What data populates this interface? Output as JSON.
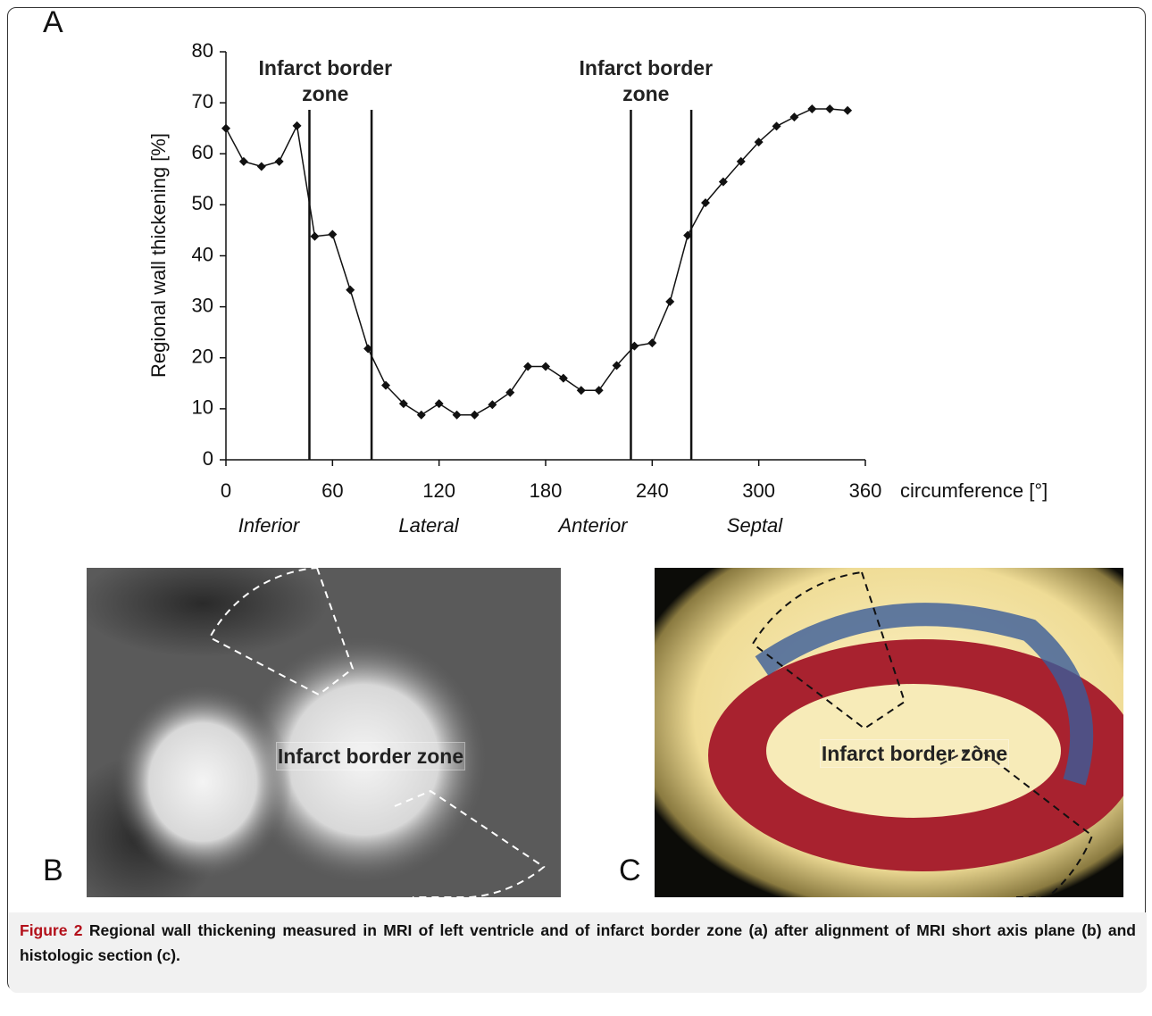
{
  "panel_labels": [
    "A",
    "B",
    "C"
  ],
  "chart_data": {
    "type": "line",
    "x": [
      0,
      10,
      20,
      30,
      40,
      50,
      60,
      70,
      80,
      90,
      100,
      110,
      120,
      130,
      140,
      150,
      160,
      170,
      180,
      190,
      200,
      210,
      220,
      230,
      240,
      250,
      260,
      270,
      280,
      290,
      300,
      310,
      320,
      330,
      340,
      350
    ],
    "values": [
      65,
      58.5,
      57.5,
      58.5,
      65.5,
      43.8,
      44.2,
      33.3,
      21.8,
      14.6,
      11,
      8.8,
      11,
      8.8,
      8.8,
      10.8,
      13.2,
      18.3,
      18.3,
      16,
      13.6,
      13.6,
      18.5,
      22.3,
      22.9,
      31,
      44,
      50.4,
      54.5,
      58.5,
      62.3,
      65.4,
      67.2,
      68.8,
      68.8,
      68.5
    ],
    "color": "#111111",
    "xlim": [
      0,
      360
    ],
    "xticks": [
      0,
      60,
      120,
      180,
      240,
      300,
      360
    ],
    "ylim": [
      0,
      80
    ],
    "yticks": [
      0,
      10,
      20,
      30,
      40,
      50,
      60,
      70,
      80
    ],
    "x_label": "circumference [°]",
    "y_label": "Regional wall thickening [%]",
    "reference_lines": [
      47,
      82,
      228,
      262
    ],
    "annotations": [
      "Infarct border zone",
      "Infarct border zone"
    ],
    "region_labels": [
      "Inferior",
      "Lateral",
      "Anterior",
      "Septal"
    ]
  },
  "images": [
    {
      "label": "Infarct border zone"
    },
    {
      "label": "Infarct border zone"
    }
  ],
  "caption": {
    "label": "Figure 2",
    "text": "Regional wall thickening measured in MRI of left ventricle and of infarct border zone (a) after alignment of MRI short axis plane (b) and histologic section (c)."
  }
}
